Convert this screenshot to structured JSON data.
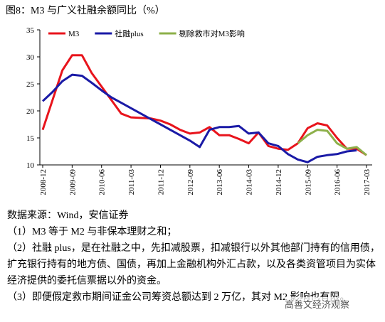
{
  "chart_data": {
    "type": "line",
    "title": "图8：M3 与广义社融余额同比（%）",
    "categories": [
      "2008-12",
      null,
      null,
      "2009-09",
      null,
      null,
      "2010-06",
      null,
      null,
      "2011-03",
      null,
      null,
      "2011-12",
      null,
      null,
      "2012-09",
      null,
      null,
      "2013-06",
      null,
      null,
      "2014-03",
      null,
      null,
      "2014-12",
      null,
      null,
      "2015-09",
      null,
      null,
      "2016-06",
      null,
      null,
      "2017-03"
    ],
    "series": [
      {
        "name": "M3",
        "color": "#e8141c",
        "values": [
          16.5,
          22,
          27.5,
          30.3,
          30.3,
          27,
          24.5,
          22,
          19.5,
          18.8,
          18.7,
          18.6,
          18.2,
          17.5,
          16.5,
          15.8,
          16,
          17,
          15.5,
          15.5,
          14.8,
          14,
          16,
          13.5,
          13,
          12.8,
          14,
          16.8,
          17.7,
          17.3,
          15,
          13,
          13,
          11.8
        ]
      },
      {
        "name": "社融plus",
        "color": "#1a1aa6",
        "values": [
          21.8,
          23.5,
          25.5,
          26.7,
          26.5,
          25.2,
          23.8,
          22.5,
          21.5,
          20.5,
          19.5,
          18.5,
          17.5,
          16.5,
          15.5,
          14.5,
          13.3,
          16.5,
          17,
          17,
          17.2,
          15.8,
          16,
          14,
          13.5,
          12,
          11,
          10.5,
          11.5,
          11.8,
          12,
          12.5,
          12.7,
          null
        ]
      },
      {
        "name": "剔除救市对M3影响",
        "color": "#8db04a",
        "values": [
          null,
          null,
          null,
          null,
          null,
          null,
          null,
          null,
          null,
          null,
          null,
          null,
          null,
          null,
          null,
          null,
          null,
          null,
          null,
          null,
          null,
          null,
          null,
          null,
          null,
          null,
          14,
          15.5,
          16.5,
          16.3,
          14,
          13,
          13.3,
          11.8
        ]
      }
    ],
    "ylim": [
      10,
      35
    ],
    "yticks": [
      10,
      15,
      20,
      25,
      30,
      35
    ],
    "legend": "top-left"
  },
  "notes": {
    "source": "数据来源：Wind，安信证券",
    "items": [
      "（1）M3 等于 M2 与非保本理财之和；",
      "（2）社融 plus，是在社融之中，先扣减股票，扣减银行以外其他部门持有的信用债，扩充银行持有的地方债、国债，再加上金融机构外汇占款，以及各类资管项目为实体经济提供的委托信票据以外的资金。",
      "（3）即便假定救市期间证金公司筹资总额达到 2 万亿，其对 M2 影响也有限。"
    ]
  },
  "watermark": "高善文经济观察"
}
